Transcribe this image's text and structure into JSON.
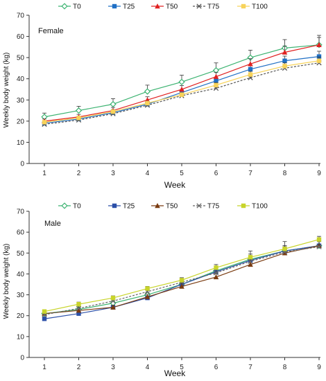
{
  "chart_data": [
    {
      "type": "line",
      "panel_label": "Female",
      "xlabel": "Week",
      "ylabel": "Weekly body weight (kg)",
      "x": [
        1,
        2,
        3,
        4,
        5,
        6,
        7,
        8,
        9
      ],
      "ylim": [
        0,
        70
      ],
      "yticks": [
        0,
        10,
        20,
        30,
        40,
        50,
        60,
        70
      ],
      "legend_placement": "top",
      "grid": false,
      "series": [
        {
          "name": "T0",
          "color": "#3cb371",
          "marker": "diamond-open",
          "dash": "solid",
          "values": [
            22.0,
            25.0,
            28.0,
            34.0,
            38.5,
            44.0,
            50.0,
            54.5,
            56.0
          ],
          "errors": [
            1.8,
            2.0,
            2.6,
            3.0,
            3.2,
            3.5,
            3.5,
            4.0,
            4.5
          ]
        },
        {
          "name": "T25",
          "color": "#1f6fc5",
          "marker": "square",
          "dash": "solid",
          "values": [
            19.0,
            21.0,
            24.0,
            28.0,
            33.5,
            39.0,
            44.5,
            48.5,
            50.5
          ],
          "errors": [
            0.8,
            1.0,
            1.0,
            1.0,
            1.2,
            1.5,
            1.8,
            2.2,
            2.5
          ]
        },
        {
          "name": "T50",
          "color": "#e02020",
          "marker": "triangle",
          "dash": "solid",
          "values": [
            20.0,
            22.0,
            25.0,
            30.0,
            35.0,
            41.0,
            47.0,
            52.5,
            56.0
          ],
          "errors": [
            1.0,
            1.2,
            1.5,
            1.5,
            1.8,
            2.0,
            2.5,
            3.0,
            3.5
          ]
        },
        {
          "name": "T75",
          "color": "#555555",
          "marker": "x",
          "dash": "dashed",
          "values": [
            18.5,
            20.5,
            23.5,
            27.5,
            32.0,
            35.5,
            40.5,
            45.0,
            47.5
          ],
          "errors": [
            0.8,
            0.8,
            1.0,
            1.0,
            1.0,
            1.2,
            1.5,
            1.5,
            1.8
          ]
        },
        {
          "name": "T100",
          "color": "#f7d35a",
          "marker": "square",
          "dash": "solid",
          "values": [
            19.5,
            21.5,
            24.5,
            28.5,
            32.5,
            37.0,
            42.0,
            46.0,
            48.5
          ],
          "errors": [
            0.8,
            0.8,
            1.0,
            1.0,
            1.0,
            1.2,
            1.5,
            1.5,
            1.8
          ]
        }
      ]
    },
    {
      "type": "line",
      "panel_label": "Male",
      "xlabel": "Week",
      "ylabel": "Weekly body weight (kg)",
      "x": [
        1,
        2,
        3,
        4,
        5,
        6,
        7,
        8,
        9
      ],
      "ylim": [
        0,
        70
      ],
      "yticks": [
        0,
        10,
        20,
        30,
        40,
        50,
        60,
        70
      ],
      "legend_placement": "top",
      "grid": false,
      "series": [
        {
          "name": "T0",
          "color": "#3cb371",
          "marker": "diamond-open",
          "dash": "solid",
          "values": [
            21.0,
            23.0,
            26.0,
            30.0,
            35.0,
            41.5,
            47.0,
            51.0,
            53.5
          ],
          "errors": [
            0.8,
            1.0,
            1.0,
            1.2,
            1.5,
            2.0,
            2.5,
            2.5,
            2.0
          ]
        },
        {
          "name": "T25",
          "color": "#2b4fa8",
          "marker": "square",
          "dash": "solid",
          "values": [
            18.5,
            21.0,
            24.0,
            28.5,
            35.0,
            41.0,
            46.5,
            51.0,
            53.5
          ],
          "errors": [
            0.6,
            0.8,
            0.8,
            1.0,
            1.2,
            1.5,
            1.8,
            2.0,
            2.0
          ]
        },
        {
          "name": "T50",
          "color": "#7a3b10",
          "marker": "triangle",
          "dash": "solid",
          "values": [
            21.0,
            22.5,
            24.0,
            29.0,
            34.0,
            38.5,
            44.5,
            50.0,
            53.5
          ],
          "errors": [
            0.8,
            0.8,
            1.0,
            1.2,
            1.5,
            1.8,
            2.0,
            2.5,
            2.5
          ]
        },
        {
          "name": "T75",
          "color": "#666666",
          "marker": "x",
          "dash": "dashed",
          "values": [
            20.5,
            23.5,
            27.0,
            31.5,
            36.0,
            40.5,
            46.0,
            50.5,
            53.0
          ],
          "errors": [
            0.8,
            1.0,
            1.2,
            1.2,
            1.5,
            2.0,
            2.0,
            3.0,
            2.5
          ]
        },
        {
          "name": "T100",
          "color": "#c8d42a",
          "marker": "square",
          "dash": "solid",
          "values": [
            22.0,
            25.5,
            28.5,
            33.0,
            37.0,
            43.0,
            48.0,
            52.0,
            56.5
          ],
          "errors": [
            0.8,
            1.0,
            1.0,
            1.0,
            1.2,
            1.5,
            3.0,
            3.5,
            1.5
          ]
        }
      ]
    }
  ]
}
